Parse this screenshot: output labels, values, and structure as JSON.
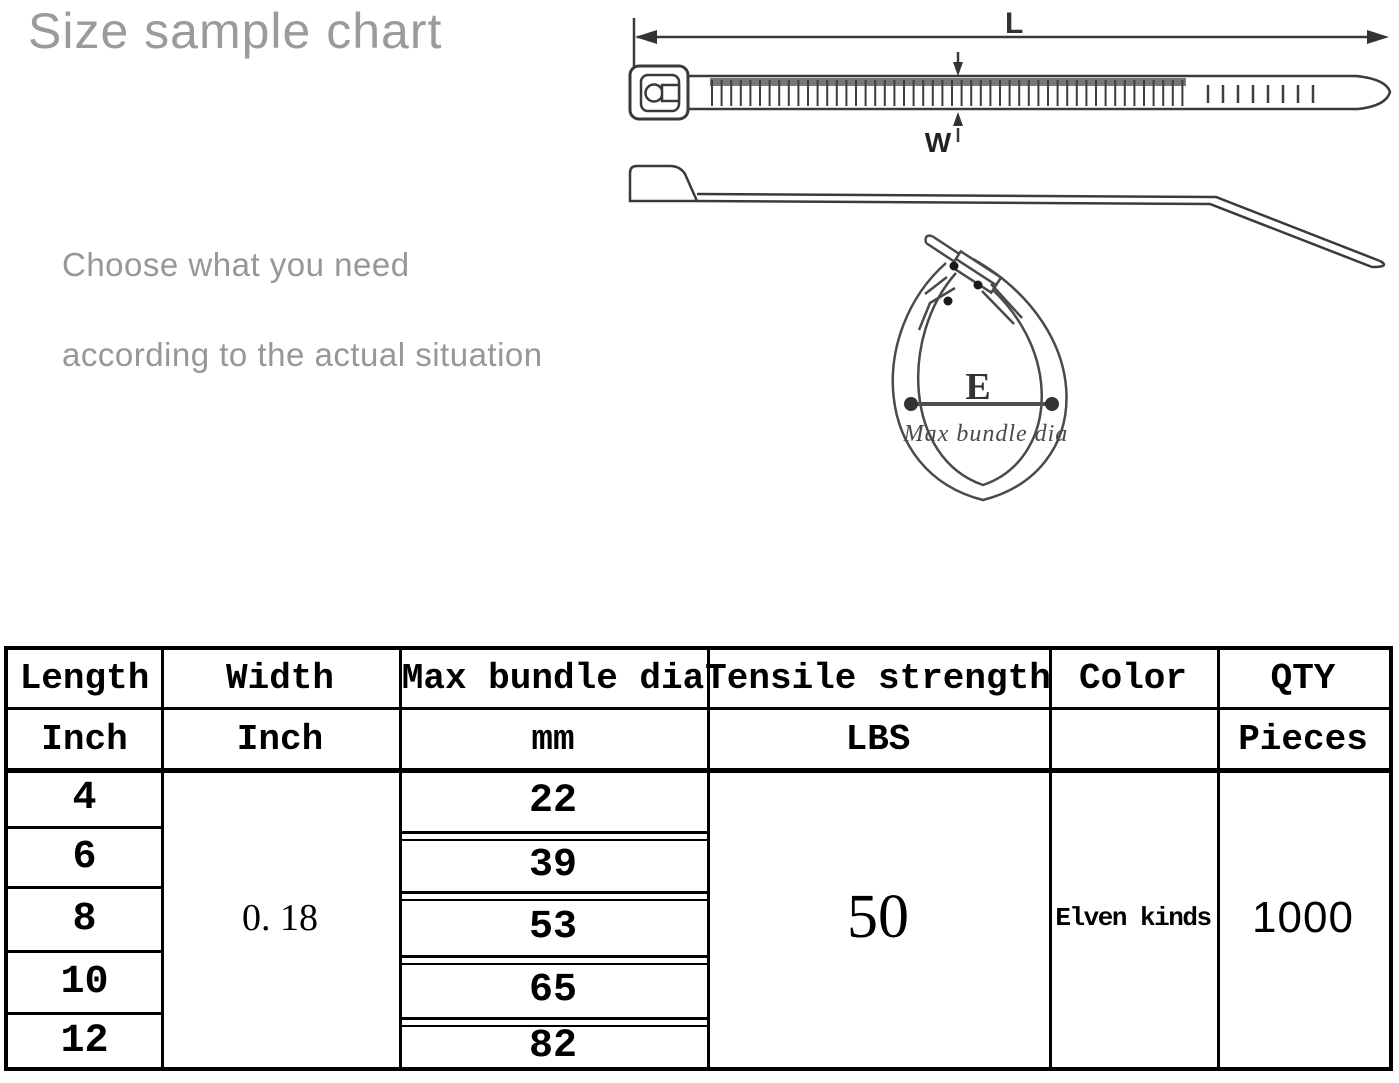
{
  "title": "Size sample chart",
  "notes": {
    "line1": "Choose what you need",
    "line2": "according to the actual situation"
  },
  "diagram": {
    "length_label": "L",
    "width_label": "W",
    "bundle_dia_label": "E",
    "bundle_dia_caption": "Max  bundle  dia"
  },
  "table": {
    "headers": {
      "length": "Length",
      "width": "Width",
      "max_bundle_dia": "Max bundle dia",
      "tensile_strength": "Tensile strength",
      "color": "Color",
      "qty": "QTY"
    },
    "units": {
      "length": "Inch",
      "width": "Inch",
      "max_bundle_dia": "mm",
      "tensile_strength": "LBS",
      "color": "",
      "qty": "Pieces"
    },
    "rows": [
      {
        "length_inch": "4",
        "max_bundle_dia_mm": "22"
      },
      {
        "length_inch": "6",
        "max_bundle_dia_mm": "39"
      },
      {
        "length_inch": "8",
        "max_bundle_dia_mm": "53"
      },
      {
        "length_inch": "10",
        "max_bundle_dia_mm": "65"
      },
      {
        "length_inch": "12",
        "max_bundle_dia_mm": "82"
      }
    ],
    "width_inch": "0. 18",
    "tensile_strength_lbs": "50",
    "color_value": "Elven kinds",
    "qty_pieces": "1000"
  },
  "colors": {
    "title_gray": "#9b9b9b",
    "line_dark": "#3a3a3a",
    "table_black": "#000000"
  }
}
